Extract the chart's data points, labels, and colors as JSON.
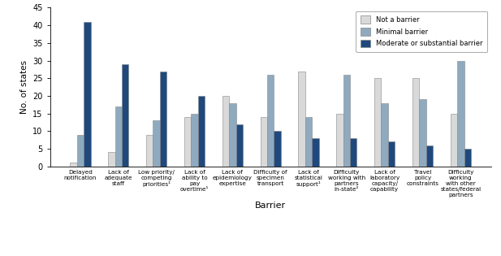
{
  "categories": [
    "Delayed\nnotification",
    "Lack of\nadequate\nstaff",
    "Low priority/\ncompeting\npriorities¹",
    "Lack of\nability to\npay\novertime¹",
    "Lack of\nepidemiology\nexpertise",
    "Difficulty of\nspecimen\ntransport",
    "Lack of\nstatistical\nsupport¹",
    "Difficulty\nworking with\npartners\nin-state²",
    "Lack of\nlaboratory\ncapacity/\ncapability",
    "Travel\npolicy\nconstraints",
    "Difficulty\nworking\nwith other\nstates/federal\npartners"
  ],
  "not_a_barrier": [
    1,
    4,
    9,
    14,
    20,
    14,
    27,
    15,
    25,
    25,
    15
  ],
  "minimal_barrier": [
    9,
    17,
    13,
    15,
    18,
    26,
    14,
    26,
    18,
    19,
    30
  ],
  "moderate_barrier": [
    41,
    29,
    27,
    20,
    12,
    10,
    8,
    8,
    7,
    6,
    5
  ],
  "color_not": "#d9d9d9",
  "color_minimal": "#8faabf",
  "color_moderate": "#1f497d",
  "xlabel": "Barrier",
  "ylabel": "No. of states",
  "ylim": [
    0,
    45
  ],
  "yticks": [
    0,
    5,
    10,
    15,
    20,
    25,
    30,
    35,
    40,
    45
  ],
  "legend_labels": [
    "Not a barrier",
    "Minimal barrier",
    "Moderate or substantial barrier"
  ],
  "figsize": [
    6.17,
    3.15
  ],
  "dpi": 100
}
